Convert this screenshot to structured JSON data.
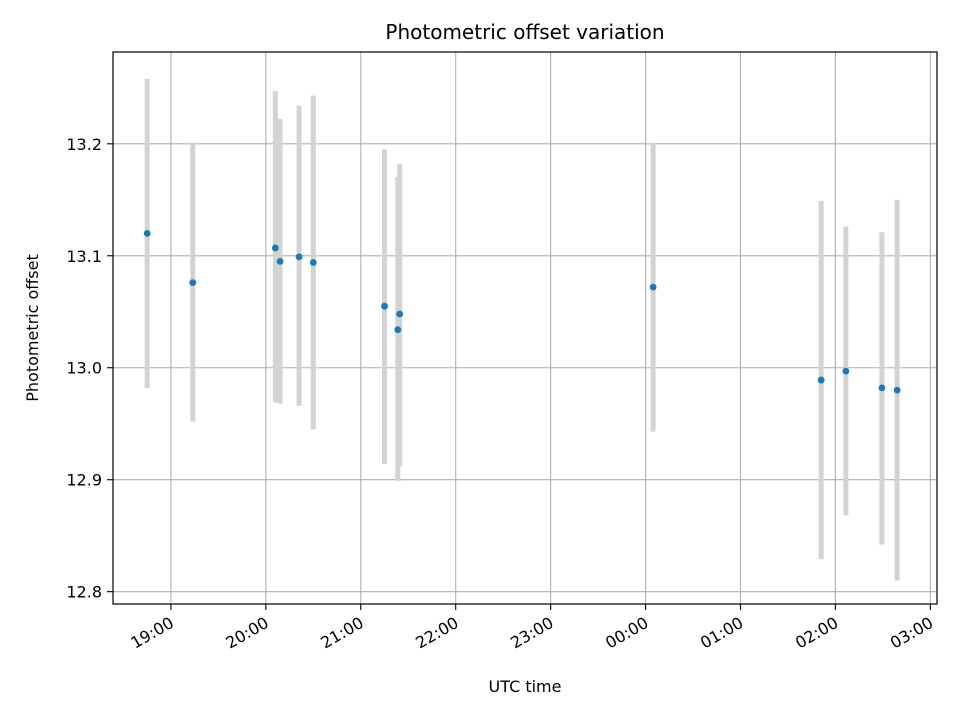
{
  "chart_data": {
    "type": "scatter",
    "title": "Photometric offset variation",
    "xlabel": "UTC time",
    "ylabel": "Photometric offset",
    "x_unit": "UTC time (hours after 18:00 on the first night)",
    "xlim": [
      0.39,
      9.07
    ],
    "ylim": [
      12.789,
      13.282
    ],
    "grid": true,
    "legend": "none",
    "x_ticks": [
      {
        "value": 1,
        "label": "19:00"
      },
      {
        "value": 2,
        "label": "20:00"
      },
      {
        "value": 3,
        "label": "21:00"
      },
      {
        "value": 4,
        "label": "22:00"
      },
      {
        "value": 5,
        "label": "23:00"
      },
      {
        "value": 6,
        "label": "00:00"
      },
      {
        "value": 7,
        "label": "01:00"
      },
      {
        "value": 8,
        "label": "02:00"
      },
      {
        "value": 9,
        "label": "03:00"
      }
    ],
    "y_ticks": [
      {
        "value": 12.8,
        "label": "12.8"
      },
      {
        "value": 12.9,
        "label": "12.9"
      },
      {
        "value": 13.0,
        "label": "13.0"
      },
      {
        "value": 13.1,
        "label": "13.1"
      },
      {
        "value": 13.2,
        "label": "13.2"
      }
    ],
    "colors": {
      "point": "#1f77b4",
      "errorbar": "#d3d3d3",
      "grid": "#b0b0b0"
    },
    "points": [
      {
        "x": 0.75,
        "y": 13.12,
        "ylo": 12.982,
        "yhi": 13.258
      },
      {
        "x": 1.23,
        "y": 13.076,
        "ylo": 12.952,
        "yhi": 13.201
      },
      {
        "x": 2.1,
        "y": 13.107,
        "ylo": 12.969,
        "yhi": 13.247
      },
      {
        "x": 2.15,
        "y": 13.095,
        "ylo": 12.968,
        "yhi": 13.222
      },
      {
        "x": 2.35,
        "y": 13.099,
        "ylo": 12.966,
        "yhi": 13.234
      },
      {
        "x": 2.5,
        "y": 13.094,
        "ylo": 12.945,
        "yhi": 13.243
      },
      {
        "x": 3.25,
        "y": 13.055,
        "ylo": 12.914,
        "yhi": 13.195
      },
      {
        "x": 3.39,
        "y": 13.034,
        "ylo": 12.899,
        "yhi": 13.17
      },
      {
        "x": 3.41,
        "y": 13.048,
        "ylo": 12.912,
        "yhi": 13.182
      },
      {
        "x": 6.08,
        "y": 13.072,
        "ylo": 12.943,
        "yhi": 13.201
      },
      {
        "x": 7.85,
        "y": 12.989,
        "ylo": 12.829,
        "yhi": 13.149
      },
      {
        "x": 8.11,
        "y": 12.997,
        "ylo": 12.868,
        "yhi": 13.126
      },
      {
        "x": 8.49,
        "y": 12.982,
        "ylo": 12.842,
        "yhi": 13.121
      },
      {
        "x": 8.65,
        "y": 12.98,
        "ylo": 12.81,
        "yhi": 13.15
      }
    ]
  }
}
